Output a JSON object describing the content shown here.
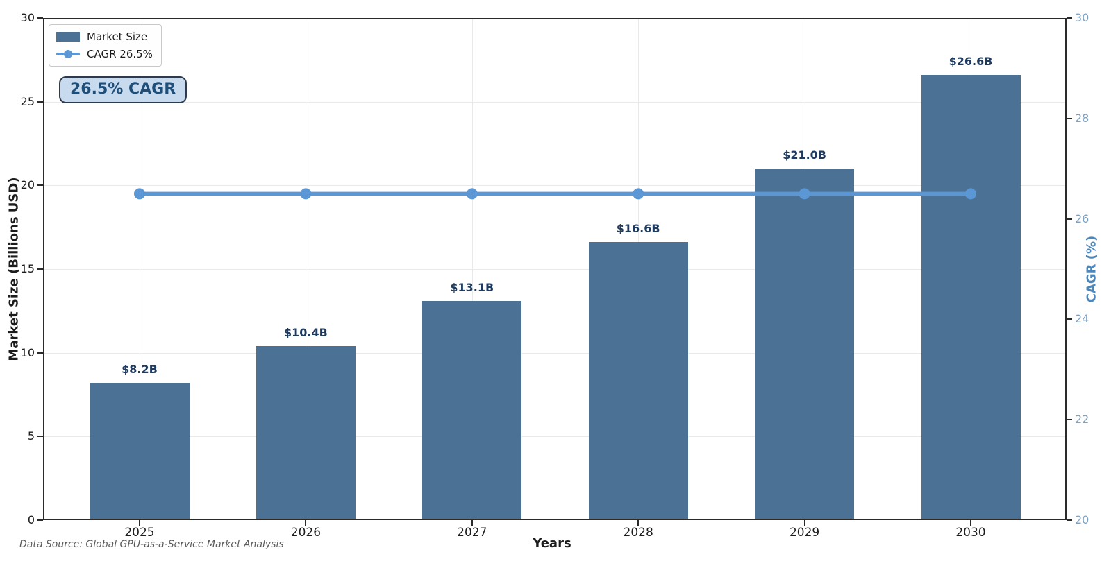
{
  "chart_data": {
    "type": "bar",
    "categories": [
      "2025",
      "2026",
      "2027",
      "2028",
      "2029",
      "2030"
    ],
    "series": [
      {
        "name": "Market Size",
        "type": "bar",
        "axis": "left",
        "values": [
          8.2,
          10.4,
          13.1,
          16.6,
          21.0,
          26.6
        ],
        "data_labels": [
          "$8.2B",
          "$10.4B",
          "$13.1B",
          "$16.6B",
          "$21.0B",
          "$26.6B"
        ]
      },
      {
        "name": "CAGR 26.5%",
        "type": "line",
        "axis": "right",
        "values": [
          26.5,
          26.5,
          26.5,
          26.5,
          26.5,
          26.5
        ]
      }
    ],
    "xlabel": "Years",
    "ylabel_left": "Market Size (Billions USD)",
    "ylabel_right": "CAGR (%)",
    "ylim_left": [
      0,
      30
    ],
    "ylim_right": [
      20,
      30
    ],
    "yticks_left": [
      0,
      5,
      10,
      15,
      20,
      25,
      30
    ],
    "yticks_right": [
      20,
      22,
      24,
      26,
      28,
      30
    ],
    "grid": "on",
    "legend_position": "upper-left",
    "annotation_badge": "26.5% CAGR",
    "footnote": "Data Source: Global GPU-as-a-Service Market Analysis"
  },
  "colors": {
    "bar": "#4b7195",
    "line": "#5b97d4",
    "bar_label": "#1e3a5f",
    "left_axis_text": "#1c1c1c",
    "right_tick_text": "#7fa1c0",
    "right_axis_title": "#4d86b8",
    "annotation_bg": "#c8dbee",
    "annotation_border": "#2f3b4c",
    "annotation_text": "#1f4e79",
    "grid": "#e9e9e9",
    "spine": "#2b2b2b",
    "footnote_text": "#5a5a5a"
  }
}
